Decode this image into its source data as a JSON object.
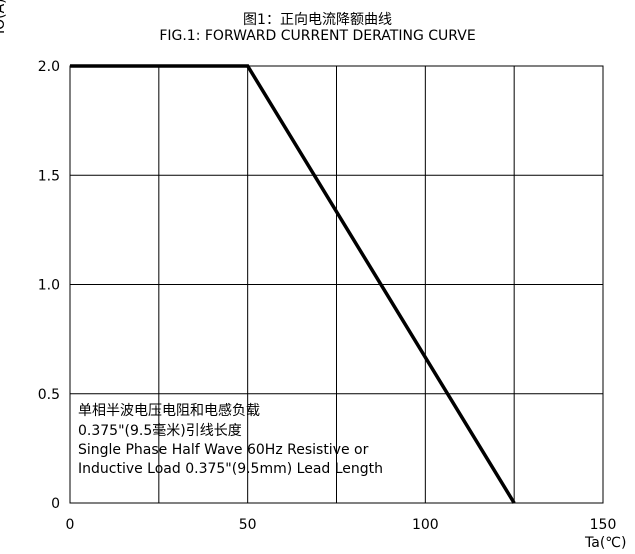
{
  "chart_data": {
    "type": "line",
    "title_cn": "图1：正向电流降额曲线",
    "title": "FIG.1: FORWARD CURRENT  DERATING CURVE",
    "ylabel": "IO(A)",
    "xlabel": "Ta(℃)",
    "xlim": [
      0,
      150
    ],
    "ylim": [
      0,
      2.0
    ],
    "x_ticks": [
      "0",
      "50",
      "100",
      "150"
    ],
    "y_ticks": [
      "0",
      "0.5",
      "1.0",
      "1.5",
      "2.0"
    ],
    "x_grid": [
      0,
      25,
      50,
      75,
      100,
      125,
      150
    ],
    "y_grid": [
      0,
      0.5,
      1.0,
      1.5,
      2.0
    ],
    "grid": true,
    "series": [
      {
        "x": [
          0,
          50,
          125
        ],
        "y": [
          2.0,
          2.0,
          0
        ],
        "color": "#000000"
      }
    ],
    "annotations": [
      "单相半波电压电阻和电感负载",
      "0.375\"(9.5毫米)引线长度",
      "Single Phase Half Wave 60Hz Resistive or",
      "Inductive Load 0.375\"(9.5mm) Lead Length"
    ]
  }
}
